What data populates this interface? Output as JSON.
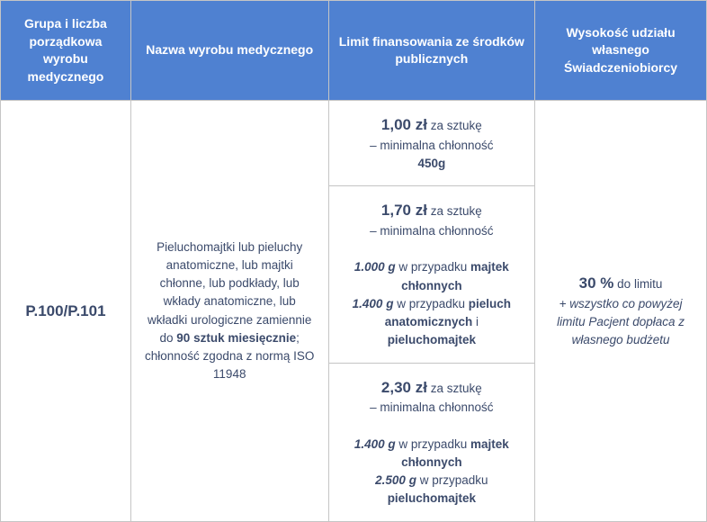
{
  "colors": {
    "header_bg": "#4f81d1",
    "header_text": "#ffffff",
    "border": "#c5c5c5",
    "body_text": "#3b4a6b"
  },
  "headers": {
    "col1": "Grupa i liczba porządkowa wyrobu medycznego",
    "col2": "Nazwa wyrobu medycznego",
    "col3": "Limit finansowania ze środków publicznych",
    "col4": "Wysokość udziału własnego Świadczeniobiorcy"
  },
  "code": "P.100/P.101",
  "name": {
    "pre": "Pieluchomajtki lub pieluchy anatomiczne, lub majtki chłonne, lub podkłady, lub wkłady anatomiczne, lub wkładki urologiczne zamiennie do ",
    "bold": "90 sztuk miesięcznie",
    "post": "; chłonność zgodna z normą ISO 11948"
  },
  "limits": {
    "tier1": {
      "price": "1,00 zł",
      "unit": " za sztukę",
      "sub": "– minimalna chłonność",
      "val": "450g"
    },
    "tier2": {
      "price": "1,70 zł",
      "unit": " za sztukę",
      "sub": "– minimalna chłonność",
      "l1a": "1.000 g",
      "l1b": " w przypadku ",
      "l1c": "majtek chłonnych",
      "l2a": "1.400 g",
      "l2b": " w przypadku ",
      "l2c": "pieluch anatomicznych",
      "l2d": " i ",
      "l2e": "pieluchomajtek"
    },
    "tier3": {
      "price": "2,30 zł",
      "unit": " za sztukę",
      "sub": "– minimalna chłonność",
      "l1a": "1.400 g",
      "l1b": " w przypadku ",
      "l1c": "majtek chłonnych",
      "l2a": "2.500 g",
      "l2b": " w przypadku ",
      "l2c": "pieluchomajtek"
    }
  },
  "copay": {
    "pct": "30 %",
    "pct_suffix": " do limitu",
    "note": "+ wszystko co powyżej limitu Pacjent dopłaca z własnego budżetu"
  }
}
